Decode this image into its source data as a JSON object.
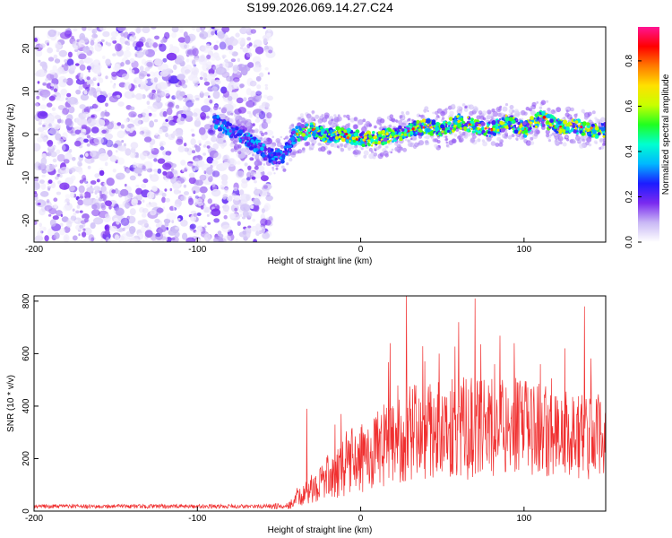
{
  "chart_data": [
    {
      "type": "heatmap",
      "title": "S199.2026.069.14.27.C24",
      "xlabel": "Height of straight line (km)",
      "ylabel": "Frequency (Hz)",
      "xlim": [
        -200,
        150
      ],
      "ylim": [
        -25,
        25
      ],
      "xticks": [
        -200,
        -100,
        0,
        100
      ],
      "yticks": [
        -20,
        -10,
        0,
        10,
        20
      ],
      "colorbar": {
        "label": "Normalized spectral amplitude",
        "range": [
          0,
          0.95
        ],
        "ticks": [
          0.0,
          0.2,
          0.4,
          0.6,
          0.8
        ],
        "tick_labels": [
          "0.0",
          "0.2",
          "0.4",
          "0.6",
          "0.8"
        ],
        "colors": [
          "#ffffff",
          "#c9b8f5",
          "#7a2af0",
          "#1c1cff",
          "#00b8ff",
          "#00ffd0",
          "#20ff20",
          "#c8ff00",
          "#ffe000",
          "#ff7a00",
          "#ff0000",
          "#ff1493"
        ]
      },
      "noise_region_x": [
        -200,
        -55
      ],
      "ridge": {
        "x": [
          -90,
          -80,
          -70,
          -62,
          -55,
          -48,
          -40,
          -30,
          -20,
          -10,
          0,
          10,
          20,
          30,
          40,
          50,
          60,
          70,
          80,
          90,
          100,
          110,
          120,
          130,
          140,
          150
        ],
        "frequency_hz": [
          3,
          1,
          -1,
          -3,
          -5,
          -5,
          0,
          1,
          0,
          0,
          -1,
          -1,
          0,
          1,
          2,
          1,
          3,
          2,
          1,
          3,
          1,
          4,
          2,
          2,
          1,
          1
        ]
      }
    },
    {
      "type": "line",
      "xlabel": "Height of straight line (km)",
      "ylabel": "SNR (10 * v/v)",
      "xlim": [
        -200,
        150
      ],
      "ylim": [
        0,
        820
      ],
      "xticks": [
        -200,
        -100,
        0,
        100
      ],
      "yticks": [
        0,
        200,
        400,
        600,
        800
      ],
      "color": "#f03030",
      "envelope": {
        "x": [
          -200,
          -60,
          -45,
          -35,
          -25,
          -15,
          -5,
          0,
          10,
          20,
          30,
          40,
          50,
          60,
          70,
          80,
          90,
          100,
          110,
          120,
          130,
          140,
          150
        ],
        "mean": [
          18,
          18,
          20,
          60,
          110,
          150,
          180,
          200,
          230,
          260,
          300,
          310,
          320,
          320,
          310,
          320,
          330,
          320,
          310,
          300,
          290,
          280,
          290
        ],
        "spread": [
          8,
          8,
          15,
          40,
          70,
          100,
          120,
          130,
          150,
          170,
          180,
          190,
          190,
          200,
          190,
          190,
          190,
          180,
          180,
          170,
          170,
          160,
          160
        ]
      },
      "peaks": [
        {
          "x": 28,
          "y": 820
        },
        {
          "x": 70,
          "y": 810
        },
        {
          "x": 60,
          "y": 720
        },
        {
          "x": 137,
          "y": 780
        },
        {
          "x": 18,
          "y": 640
        },
        {
          "x": 94,
          "y": 640
        },
        {
          "x": 48,
          "y": 600
        },
        {
          "x": 110,
          "y": 560
        },
        {
          "x": -33,
          "y": 390
        },
        {
          "x": -12,
          "y": 370
        },
        {
          "x": 125,
          "y": 620
        },
        {
          "x": 82,
          "y": 560
        }
      ]
    }
  ]
}
